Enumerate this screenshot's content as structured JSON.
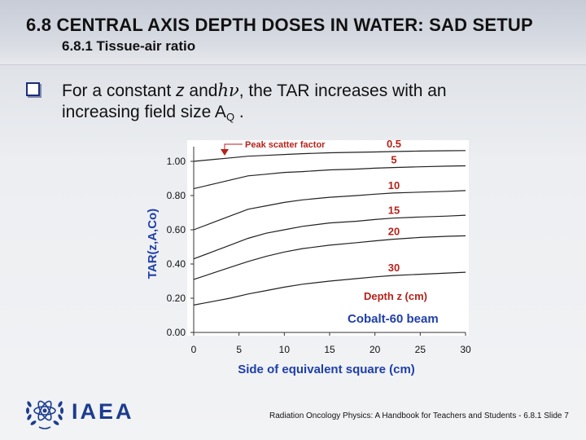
{
  "slide": {
    "title": "6.8 CENTRAL AXIS DEPTH DOSES IN WATER: SAD SETUP",
    "subtitle": "6.8.1 Tissue-air ratio",
    "bullet": {
      "part1": "For a constant ",
      "z": "z",
      "part2": " and",
      "hv": "hν",
      "part3": ", the TAR increases with an",
      "line2": "increasing field size A",
      "sub": "Q",
      "end": " ."
    },
    "footer": "Radiation Oncology Physics: A Handbook for Teachers and Students - 6.8.1 Slide 7",
    "logo_text": "IAEA",
    "logo_icon": "iaea-atom-olive-wreath-icon"
  },
  "chart_data": {
    "type": "line",
    "xlabel": "Side of equivalent square (cm)",
    "ylabel": "TAR(z,A,Co)",
    "xlim": [
      0,
      30
    ],
    "ylim": [
      0,
      1.0
    ],
    "xticks": [
      "0",
      "5",
      "10",
      "15",
      "20",
      "25",
      "30"
    ],
    "yticks": [
      "0.00",
      "0.20",
      "0.40",
      "0.60",
      "0.80",
      "1.00"
    ],
    "x": [
      0,
      2,
      4,
      6,
      8,
      10,
      12,
      15,
      18,
      20,
      22,
      25,
      28,
      30
    ],
    "series": [
      {
        "name": "0.5",
        "values": [
          1.0,
          1.01,
          1.02,
          1.03,
          1.035,
          1.04,
          1.045,
          1.05,
          1.053,
          1.055,
          1.057,
          1.06,
          1.062,
          1.063
        ]
      },
      {
        "name": "5",
        "values": [
          0.84,
          0.865,
          0.89,
          0.915,
          0.925,
          0.935,
          0.94,
          0.95,
          0.955,
          0.96,
          0.964,
          0.968,
          0.972,
          0.974
        ]
      },
      {
        "name": "10",
        "values": [
          0.6,
          0.64,
          0.68,
          0.72,
          0.74,
          0.76,
          0.775,
          0.79,
          0.8,
          0.808,
          0.815,
          0.82,
          0.825,
          0.829
        ]
      },
      {
        "name": "15",
        "values": [
          0.43,
          0.47,
          0.51,
          0.55,
          0.58,
          0.6,
          0.62,
          0.64,
          0.65,
          0.66,
          0.668,
          0.675,
          0.68,
          0.685
        ]
      },
      {
        "name": "20",
        "values": [
          0.31,
          0.345,
          0.38,
          0.415,
          0.445,
          0.47,
          0.49,
          0.51,
          0.525,
          0.535,
          0.545,
          0.555,
          0.562,
          0.565
        ]
      },
      {
        "name": "30",
        "values": [
          0.16,
          0.18,
          0.2,
          0.225,
          0.245,
          0.265,
          0.282,
          0.3,
          0.315,
          0.325,
          0.333,
          0.34,
          0.347,
          0.352
        ]
      }
    ],
    "series_label_color": "#b4231b",
    "annotations": {
      "peak_scatter": "Peak scatter factor",
      "depth_label": "Depth z (cm)",
      "beam_label": "Cobalt-60 beam",
      "beam_color": "#1f3fa8"
    },
    "axis_color": "#1f3fa8",
    "grid": false
  }
}
